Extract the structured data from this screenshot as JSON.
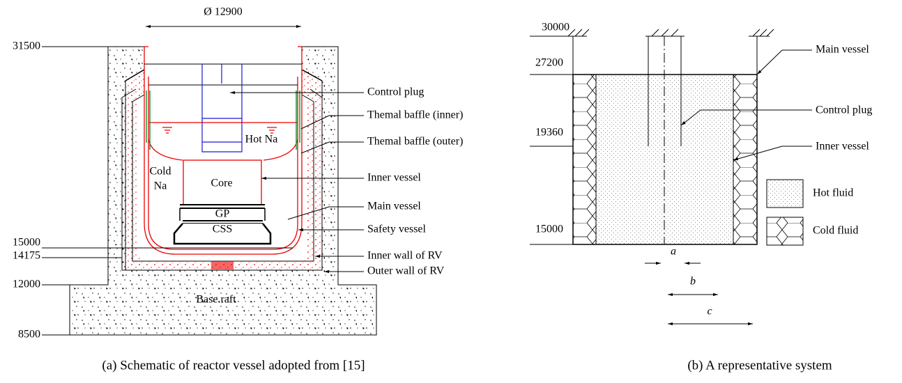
{
  "left_panel": {
    "diameter_label": "Ø 12900",
    "elevations": [
      "31500",
      "15000",
      "14175",
      "12000",
      "8500"
    ],
    "callouts": [
      "Control plug",
      "Themal baffle (inner)",
      "Themal baffle (outer)",
      "Inner vessel",
      "Main vessel",
      "Safety vessel",
      "Inner wall of RV",
      "Outer wall of RV"
    ],
    "regions": {
      "hot": "Hot Na",
      "cold_line1": "Cold",
      "cold_line2": "Na",
      "core": "Core",
      "gp": "GP",
      "css": "CSS",
      "base": "Base raft"
    },
    "caption": "(a)  Schematic of reactor vessel adopted from [15]"
  },
  "right_panel": {
    "elevations": [
      "30000",
      "27200",
      "19360",
      "15000"
    ],
    "callouts": [
      "Main vessel",
      "Control plug",
      "Inner vessel"
    ],
    "legend": [
      "Hot fluid",
      "Cold fluid"
    ],
    "dimensions": [
      "a",
      "b",
      "c"
    ],
    "caption": "(b)  A representative system"
  }
}
